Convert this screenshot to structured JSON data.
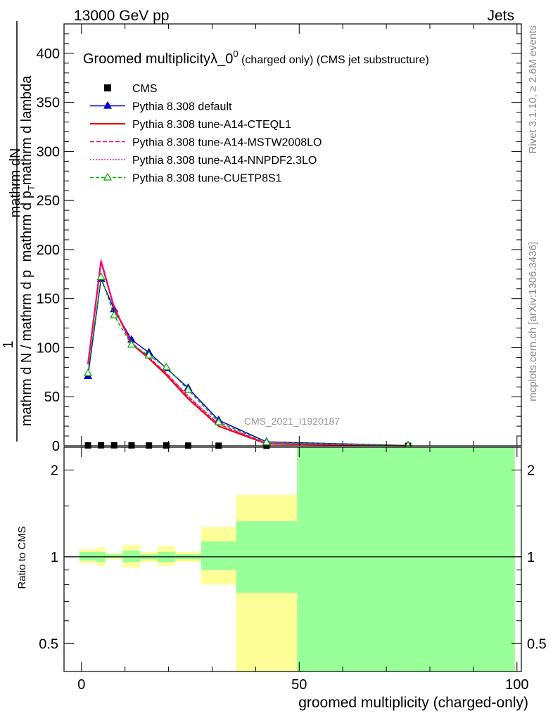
{
  "header": {
    "left": "13000 GeV pp",
    "right": "Jets"
  },
  "side": {
    "rivet": "Rivet 3.1.10, ≥ 2.6M events",
    "mcplots": "mcplots.cern.ch [arXiv:1306.3436]"
  },
  "watermark": "CMS_2021_I1920187",
  "title": {
    "main": "Groomed multiplicityλ_0",
    "sup": "0",
    "rest": " (charged only) (CMS jet substructure)"
  },
  "colors": {
    "cms": "#000000",
    "default": "#0000cc",
    "cteql1": "#ee0000",
    "mstw": "#ee0077",
    "nnpdf": "#ff00cc",
    "cuetp": "#00aa00",
    "band_yellow": "#ffff99",
    "band_green": "#99ff99"
  },
  "chart_data": [
    {
      "type": "line",
      "ylabel_num": "1",
      "ylabel_den": "mathrm d N / mathrm d p",
      "ylabel_top": "mathrm d",
      "ylabel_top2": "N",
      "ylabel_bot": "mathrm d p",
      "ylabel_sub": "T",
      "ylabel_bot2": " mathrm d p",
      "ylabel_mid": "_T mathrm d lambda",
      "xlim": [
        -4,
        101
      ],
      "ylim": [
        0,
        430
      ],
      "yticks": [
        0,
        50,
        100,
        150,
        200,
        250,
        300,
        350,
        400
      ],
      "series": [
        {
          "name": "CMS",
          "key": "cms",
          "marker": "square",
          "x": [
            1.5,
            4.5,
            7.5,
            11.5,
            15.5,
            19.5,
            24.5,
            31.5,
            42.5,
            75
          ],
          "y": [
            0.4,
            0.5,
            0.5,
            0.4,
            0.3,
            0.3,
            0.2,
            0.1,
            0.02,
            0.001
          ]
        },
        {
          "name": "Pythia 8.308 default",
          "key": "default",
          "marker": "triangle",
          "dash": "",
          "x": [
            1.5,
            4.5,
            7.5,
            11.5,
            15.5,
            19.5,
            24.5,
            31.5,
            42.5,
            75
          ],
          "y": [
            71,
            170,
            139,
            108,
            95,
            79,
            59,
            26,
            4,
            0.3
          ]
        },
        {
          "name": "Pythia 8.308 tune-A14-CTEQL1",
          "key": "cteql1",
          "marker": "none",
          "dash": "",
          "x": [
            1.5,
            4.5,
            7.5,
            11.5,
            15.5,
            19.5,
            24.5,
            31.5,
            42.5,
            75
          ],
          "y": [
            83,
            188,
            141,
            104,
            89,
            72,
            48,
            20,
            2,
            0.1
          ]
        },
        {
          "name": "Pythia 8.308 tune-A14-MSTW2008LO",
          "key": "mstw",
          "marker": "none",
          "dash": "6,3",
          "x": [
            1.5,
            4.5,
            7.5,
            11.5,
            15.5,
            19.5,
            24.5,
            31.5,
            42.5,
            75
          ],
          "y": [
            83,
            189,
            141,
            105,
            90,
            74,
            50,
            22,
            2.5,
            0.1
          ]
        },
        {
          "name": "Pythia 8.308 tune-A14-NNPDF2.3LO",
          "key": "nnpdf",
          "marker": "none",
          "dash": "2,2",
          "x": [
            1.5,
            4.5,
            7.5,
            11.5,
            15.5,
            19.5,
            24.5,
            31.5,
            42.5,
            75
          ],
          "y": [
            84,
            190,
            142,
            105,
            90,
            74,
            51,
            22,
            2.5,
            0.1
          ]
        },
        {
          "name": "Pythia 8.308 tune-CUETP8S1",
          "key": "cuetp",
          "marker": "open-triangle",
          "dash": "5,3",
          "x": [
            1.5,
            4.5,
            7.5,
            11.5,
            15.5,
            19.5,
            24.5,
            31.5,
            42.5,
            75
          ],
          "y": [
            74,
            172,
            133,
            103,
            92,
            80,
            57,
            24,
            3.5,
            0.3
          ]
        }
      ]
    },
    {
      "type": "area",
      "ylabel": "Ratio to CMS",
      "xlabel": "groomed multiplicity (charged-only)",
      "xlim": [
        -4,
        101
      ],
      "ylim": [
        0.4,
        2.4
      ],
      "log_y": true,
      "yticks": [
        0.5,
        1,
        2
      ],
      "xticks": [
        0,
        50,
        100
      ],
      "reference_y": 1,
      "bands": [
        {
          "x0": -0.5,
          "x1": 3.5,
          "yellow": [
            0.95,
            1.06
          ],
          "green": [
            0.97,
            1.04
          ]
        },
        {
          "x0": 3.5,
          "x1": 5.5,
          "yellow": [
            0.93,
            1.08
          ],
          "green": [
            0.96,
            1.04
          ]
        },
        {
          "x0": 5.5,
          "x1": 9.5,
          "yellow": [
            0.98,
            1.03
          ],
          "green": [
            0.99,
            1.02
          ]
        },
        {
          "x0": 9.5,
          "x1": 13.5,
          "yellow": [
            0.92,
            1.1
          ],
          "green": [
            0.96,
            1.05
          ]
        },
        {
          "x0": 13.5,
          "x1": 17.5,
          "yellow": [
            0.96,
            1.04
          ],
          "green": [
            0.98,
            1.02
          ]
        },
        {
          "x0": 17.5,
          "x1": 21.5,
          "yellow": [
            0.93,
            1.09
          ],
          "green": [
            0.96,
            1.04
          ]
        },
        {
          "x0": 21.5,
          "x1": 27.5,
          "yellow": [
            0.96,
            1.04
          ],
          "green": [
            0.98,
            1.02
          ]
        },
        {
          "x0": 27.5,
          "x1": 35.5,
          "yellow": [
            0.8,
            1.27
          ],
          "green": [
            0.9,
            1.13
          ]
        },
        {
          "x0": 35.5,
          "x1": 49.5,
          "yellow": [
            0.38,
            1.64
          ],
          "green": [
            0.75,
            1.33
          ]
        },
        {
          "x0": 49.5,
          "x1": 99.5,
          "yellow": [
            0.3,
            3.0
          ],
          "green": [
            0.3,
            3.0
          ]
        }
      ]
    }
  ]
}
